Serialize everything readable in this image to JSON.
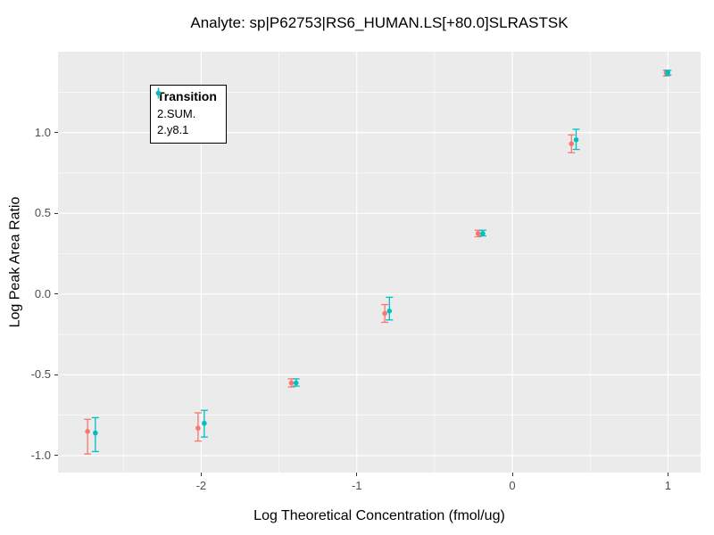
{
  "chart_data": {
    "type": "scatter",
    "title": "Analyte: sp|P62753|RS6_HUMAN.LS[+80.0]SLRASTSK",
    "xlabel": "Log Theoretical Concentration (fmol/ug)",
    "ylabel": "Log Peak Area Ratio",
    "xlim": [
      -2.92,
      1.21
    ],
    "ylim": [
      -1.105,
      1.5
    ],
    "x_ticks": [
      -2,
      -1,
      0,
      1
    ],
    "x_tick_labels": [
      "-2",
      "-1",
      "0",
      "1"
    ],
    "x_minor_ticks": [
      -2.5,
      -1.5,
      -0.5,
      0.5
    ],
    "y_ticks": [
      -1.0,
      -0.5,
      0.0,
      0.5,
      1.0
    ],
    "y_tick_labels": [
      "-1.0",
      "-0.5",
      "0.0",
      "0.5",
      "1.0"
    ],
    "y_minor_ticks": [
      -0.75,
      -0.25,
      0.25,
      0.75,
      1.25
    ],
    "grid": true,
    "panel_background": "#EBEBEB",
    "grid_color": "#FFFFFF",
    "tick_text_color": "#4D4D4D",
    "legend": {
      "title": "Transition",
      "position": "inside-top-left"
    },
    "series": [
      {
        "name": "2.SUM.",
        "color": "#F8766D",
        "x": [
          -2.73,
          -2.02,
          -1.42,
          -0.82,
          -0.22,
          0.38,
          0.99
        ],
        "y": [
          -0.85,
          -0.83,
          -0.55,
          -0.12,
          0.375,
          0.93,
          1.37
        ],
        "ymin": [
          -0.99,
          -0.91,
          -0.575,
          -0.175,
          0.355,
          0.875,
          1.35
        ],
        "ymax": [
          -0.775,
          -0.735,
          -0.525,
          -0.065,
          0.395,
          0.985,
          1.385
        ]
      },
      {
        "name": "2.y8.1",
        "color": "#00BFC4",
        "x": [
          -2.68,
          -1.98,
          -1.39,
          -0.79,
          -0.19,
          0.41,
          1.0
        ],
        "y": [
          -0.86,
          -0.8,
          -0.55,
          -0.105,
          0.375,
          0.955,
          1.37
        ],
        "ymin": [
          -0.975,
          -0.885,
          -0.57,
          -0.16,
          0.36,
          0.895,
          1.355
        ],
        "ymax": [
          -0.765,
          -0.72,
          -0.525,
          -0.02,
          0.395,
          1.02,
          1.385
        ]
      }
    ]
  }
}
